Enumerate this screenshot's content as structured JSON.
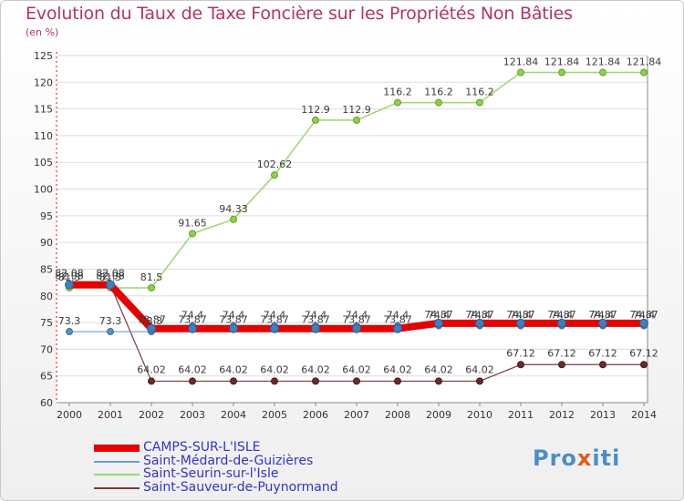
{
  "header": {
    "title": "Evolution du Taux de Taxe Foncière sur les Propriétés Non Bâties",
    "unit": "(en %)"
  },
  "brand": {
    "prefix": "Pro",
    "x": "x",
    "suffix": "iti"
  },
  "chart_data": {
    "type": "line",
    "title": "Evolution du Taux de Taxe Foncière sur les Propriétés Non Bâties",
    "ylabel": "(en %)",
    "xlabel": "",
    "ylim": [
      60,
      125
    ],
    "yticks": [
      60,
      65,
      70,
      75,
      80,
      85,
      90,
      95,
      100,
      105,
      110,
      115,
      120,
      125
    ],
    "grid": "y",
    "x": [
      2000,
      2001,
      2002,
      2003,
      2004,
      2005,
      2006,
      2007,
      2008,
      2009,
      2010,
      2011,
      2012,
      2013,
      2014
    ],
    "series": [
      {
        "name": "CAMPS-SUR-L'ISLE",
        "color": "#e60000",
        "values": [
          82.08,
          82.08,
          73.87,
          73.87,
          73.87,
          73.87,
          73.87,
          73.87,
          73.87,
          74.87,
          74.87,
          74.87,
          74.87,
          74.87,
          74.87
        ],
        "labels": [
          "82.08",
          "82.08",
          "73.87",
          "73.87",
          "73.87",
          "73.87",
          "73.87",
          "73.87",
          "73.87",
          "74.87",
          "74.87",
          "74.87",
          "74.87",
          "74.87",
          "74.87"
        ]
      },
      {
        "name": "Saint-Médard-de-Guizières",
        "color": "#6aa0cc",
        "values": [
          73.3,
          73.3,
          73.3,
          74.4,
          74.4,
          74.4,
          74.4,
          74.4,
          74.4,
          74.4,
          74.4,
          74.4,
          74.4,
          74.4,
          74.4
        ],
        "labels": [
          "73.3",
          "73.3",
          "73.3",
          "74.4",
          "74.4",
          "74.4",
          "74.4",
          "74.4",
          "74.4",
          "74.4",
          "74.4",
          "74.4",
          "74.4",
          "74.4",
          "74.4"
        ]
      },
      {
        "name": "Saint-Seurin-sur-l'Isle",
        "color": "#9ed56e",
        "values": [
          81.5,
          81.5,
          81.5,
          91.65,
          94.33,
          102.62,
          112.9,
          112.9,
          116.2,
          116.2,
          116.2,
          121.84,
          121.84,
          121.84,
          121.84
        ],
        "labels": [
          "81.5",
          "81.5",
          "81.5",
          "91.65",
          "94.33",
          "102.62",
          "112.9",
          "112.9",
          "116.2",
          "116.2",
          "116.2",
          "121.84",
          "121.84",
          "121.84",
          "121.84"
        ]
      },
      {
        "name": "Saint-Sauveur-de-Puynormand",
        "color": "#7a3b3b",
        "values": [
          82.08,
          82.08,
          64.02,
          64.02,
          64.02,
          64.02,
          64.02,
          64.02,
          64.02,
          64.02,
          64.02,
          67.12,
          67.12,
          67.12,
          67.12
        ],
        "labels": [
          "82.08",
          "82.08",
          "64.02",
          "64.02",
          "64.02",
          "64.02",
          "64.02",
          "64.02",
          "64.02",
          "64.02",
          "64.02",
          "67.12",
          "67.12",
          "67.12",
          "67.12"
        ]
      }
    ]
  }
}
